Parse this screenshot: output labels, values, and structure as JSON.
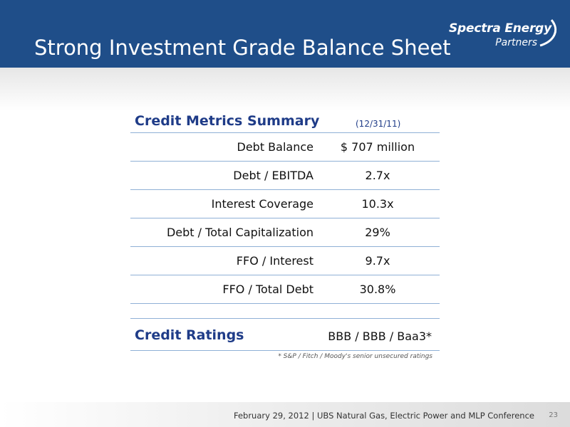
{
  "slide": {
    "title": "Strong Investment Grade Balance Sheet",
    "logo": {
      "brand": "Spectra Energy",
      "sub": "Partners"
    },
    "accent_color": "#1f4e89"
  },
  "metrics": {
    "heading": "Credit Metrics Summary",
    "as_of": "(12/31/11)",
    "rows": [
      {
        "label": "Debt Balance",
        "value": "$ 707 million"
      },
      {
        "label": "Debt / EBITDA",
        "value": "2.7x"
      },
      {
        "label": "Interest Coverage",
        "value": "10.3x"
      },
      {
        "label": "Debt / Total Capitalization",
        "value": "29%"
      },
      {
        "label": "FFO / Interest",
        "value": "9.7x"
      },
      {
        "label": "FFO / Total Debt",
        "value": "30.8%"
      }
    ]
  },
  "ratings": {
    "heading": "Credit Ratings",
    "value": "BBB / BBB / Baa3*",
    "footnote": "* S&P / Fitch / Moody's senior unsecured ratings"
  },
  "footer": {
    "text": "February 29, 2012  | UBS Natural Gas, Electric Power and MLP Conference",
    "page_number": "23"
  }
}
